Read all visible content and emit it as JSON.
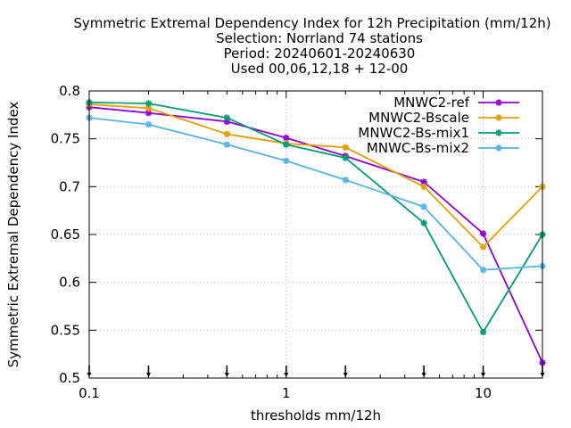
{
  "chart_data": {
    "type": "line",
    "title_lines": [
      "Symmetric Extremal Dependency Index  for 12h Precipitation (mm/12h)",
      "Selection: Norrland     74 stations",
      "Period: 20240601-20240630",
      "Used 00,06,12,18 + 12-00"
    ],
    "xlabel": "thresholds mm/12h",
    "ylabel": "Symmetric Extremal Dependency Index",
    "x_scale": "log",
    "xlim": [
      0.1,
      20
    ],
    "ylim": [
      0.5,
      0.8
    ],
    "x_ticks": [
      0.1,
      1,
      10
    ],
    "x_tick_labels": [
      "0.1",
      "1",
      "10"
    ],
    "y_ticks": [
      0.5,
      0.55,
      0.6,
      0.65,
      0.7,
      0.75,
      0.8
    ],
    "y_tick_labels": [
      "0.5",
      "0.55",
      "0.6",
      "0.65",
      "0.7",
      "0.75",
      "0.8"
    ],
    "grid": true,
    "legend_position": "top-right",
    "x": [
      0.1,
      0.2,
      0.5,
      1,
      2,
      5,
      10,
      20
    ],
    "series": [
      {
        "name": "MNWC2-ref",
        "color": "#9400d3",
        "values": [
          0.783,
          0.777,
          0.768,
          0.751,
          0.732,
          0.705,
          0.651,
          0.516
        ]
      },
      {
        "name": "MNWC2-Bscale",
        "color": "#e69f00",
        "values": [
          0.786,
          0.782,
          0.755,
          0.745,
          0.741,
          0.7,
          0.637,
          0.7
        ]
      },
      {
        "name": "MNWC2-Bs-mix1",
        "color": "#009e73",
        "values": [
          0.788,
          0.787,
          0.772,
          0.744,
          0.73,
          0.662,
          0.548,
          0.65
        ]
      },
      {
        "name": "MNWC-Bs-mix2",
        "color": "#56b4e9",
        "values": [
          0.772,
          0.765,
          0.744,
          0.727,
          0.707,
          0.679,
          0.613,
          0.617
        ]
      }
    ],
    "arrow_marker_x": [
      0.1,
      0.2,
      0.5,
      1,
      2,
      5,
      10,
      20
    ]
  }
}
